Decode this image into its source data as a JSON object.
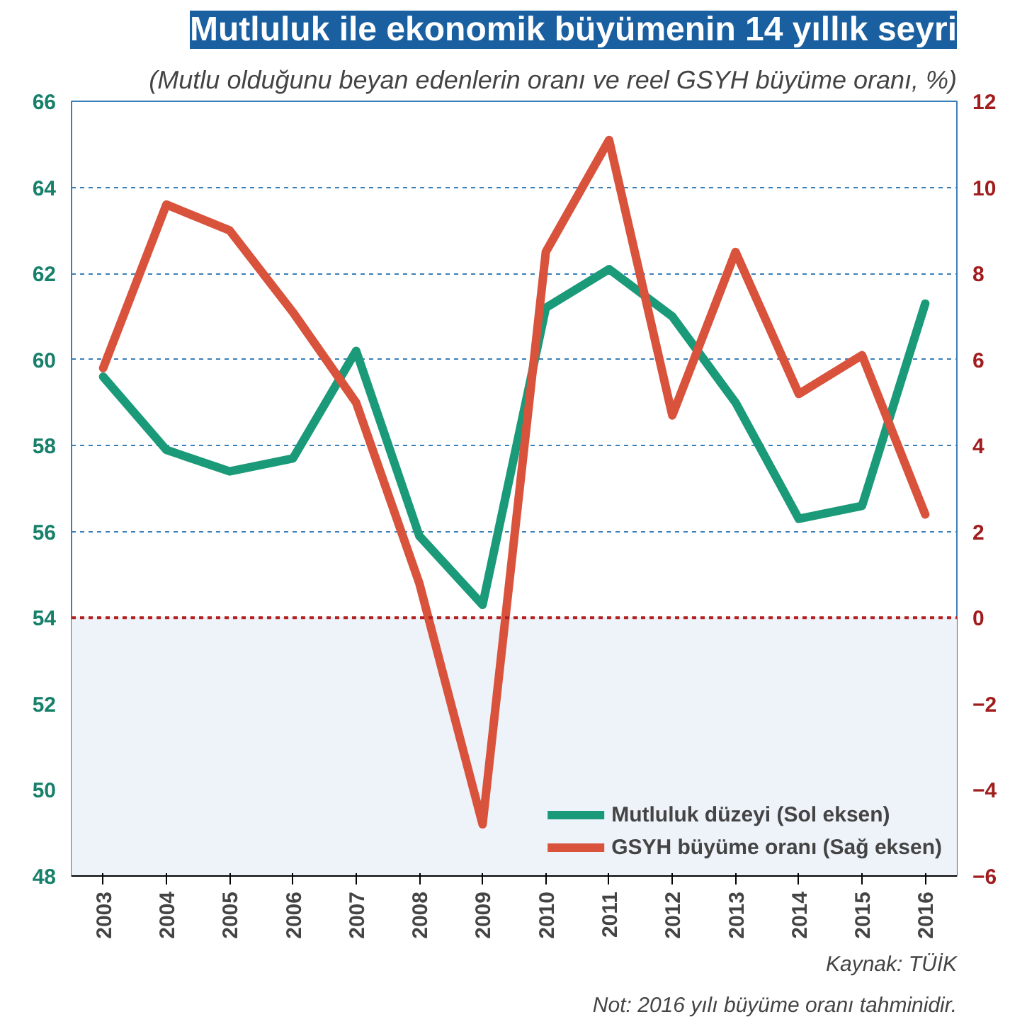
{
  "chart_data": {
    "type": "line",
    "title": "Mutluluk ile ekonomik büyümenin 14 yıllık seyri",
    "subtitle": "(Mutlu olduğunu beyan edenlerin oranı ve reel GSYH büyüme oranı, %)",
    "categories": [
      "2003",
      "2004",
      "2005",
      "2006",
      "2007",
      "2008",
      "2009",
      "2010",
      "2011",
      "2012",
      "2013",
      "2014",
      "2015",
      "2016"
    ],
    "series": [
      {
        "name": "Mutluluk düzeyi (Sol eksen)",
        "color": "#1a9a78",
        "values": [
          59.6,
          57.9,
          57.4,
          57.7,
          60.2,
          55.9,
          54.3,
          61.2,
          62.1,
          61.0,
          59.0,
          56.3,
          56.6,
          61.3
        ]
      },
      {
        "name": "GSYH büyüme oranı (Sağ eksen)",
        "color": "#d9533c",
        "axis": "y2",
        "values": [
          5.8,
          9.6,
          9.0,
          7.1,
          5.0,
          0.8,
          -4.8,
          8.5,
          11.1,
          4.7,
          8.5,
          5.2,
          6.1,
          2.4
        ]
      }
    ],
    "ylim": [
      48,
      66
    ],
    "yticks": [
      48,
      50,
      52,
      54,
      56,
      58,
      60,
      62,
      64,
      66
    ],
    "y2lim": [
      -6,
      12
    ],
    "y2ticks": [
      -6,
      -4,
      -2,
      0,
      2,
      4,
      6,
      8,
      10,
      12
    ],
    "ref_lines": [
      {
        "axis": "y2",
        "value": 0,
        "color": "#b22222",
        "line_style": "dotted"
      }
    ],
    "bands": [
      {
        "axis": "y2",
        "from": -6,
        "to": 0,
        "color": "#eef3fa"
      }
    ],
    "grid": "y",
    "legend": "bottom right",
    "line_style": "solid",
    "marker": "none",
    "annotations": [
      "Kaynak: TÜİK",
      "Not: 2016 yılı büyüme oranı tahminidir."
    ]
  }
}
